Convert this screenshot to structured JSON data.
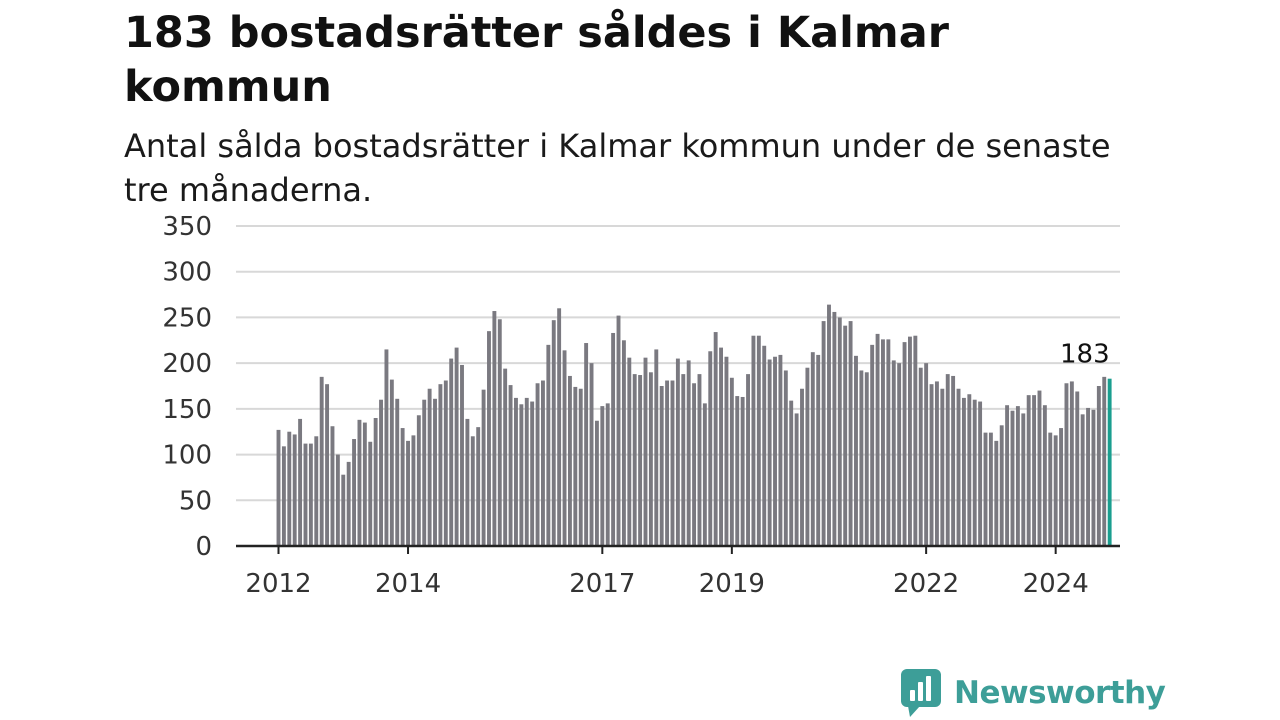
{
  "header": {
    "title": "183 bostadsrätter såldes i Kalmar kommun",
    "subtitle": "Antal sålda bostadsrätter i Kalmar kommun under de senaste tre månaderna."
  },
  "brand": {
    "name": "Newsworthy",
    "color": "#3d9e98",
    "icon": "bar-chart-speech-bubble-icon"
  },
  "chart_data": {
    "type": "bar",
    "title": "183 bostadsrätter såldes i Kalmar kommun",
    "subtitle": "Antal sålda bostadsrätter i Kalmar kommun under de senaste tre månaderna.",
    "xlabel": "",
    "ylabel": "",
    "ylim": [
      0,
      350
    ],
    "yticks": [
      0,
      50,
      100,
      150,
      200,
      250,
      300,
      350
    ],
    "xticks": [
      {
        "label": "2012",
        "index": 0
      },
      {
        "label": "2014",
        "index": 24
      },
      {
        "label": "2017",
        "index": 60
      },
      {
        "label": "2019",
        "index": 84
      },
      {
        "label": "2022",
        "index": 120
      },
      {
        "label": "2024",
        "index": 144
      }
    ],
    "grid": true,
    "bar_color": "#7a7980",
    "highlight_color": "#1a9e8f",
    "highlight_label": "183",
    "values": [
      127,
      109,
      125,
      122,
      139,
      112,
      112,
      120,
      185,
      177,
      131,
      100,
      78,
      92,
      117,
      138,
      135,
      114,
      140,
      160,
      215,
      182,
      161,
      129,
      115,
      121,
      143,
      160,
      172,
      161,
      177,
      181,
      205,
      217,
      198,
      139,
      120,
      130,
      171,
      235,
      257,
      248,
      194,
      176,
      162,
      155,
      162,
      158,
      178,
      181,
      220,
      247,
      260,
      214,
      186,
      174,
      172,
      222,
      200,
      137,
      153,
      156,
      233,
      252,
      225,
      206,
      188,
      187,
      206,
      190,
      215,
      175,
      181,
      181,
      205,
      188,
      203,
      178,
      188,
      156,
      213,
      234,
      217,
      207,
      184,
      164,
      163,
      188,
      230,
      230,
      219,
      204,
      207,
      209,
      192,
      159,
      145,
      172,
      195,
      212,
      209,
      246,
      264,
      256,
      250,
      241,
      246,
      208,
      192,
      190,
      220,
      232,
      226,
      226,
      203,
      200,
      223,
      229,
      230,
      195,
      200,
      177,
      180,
      172,
      188,
      186,
      172,
      162,
      166,
      160,
      158,
      124,
      124,
      115,
      132,
      154,
      148,
      153,
      145,
      165,
      165,
      170,
      154,
      124,
      121,
      129,
      178,
      180,
      169,
      144,
      151,
      149,
      175,
      185,
      183
    ]
  }
}
